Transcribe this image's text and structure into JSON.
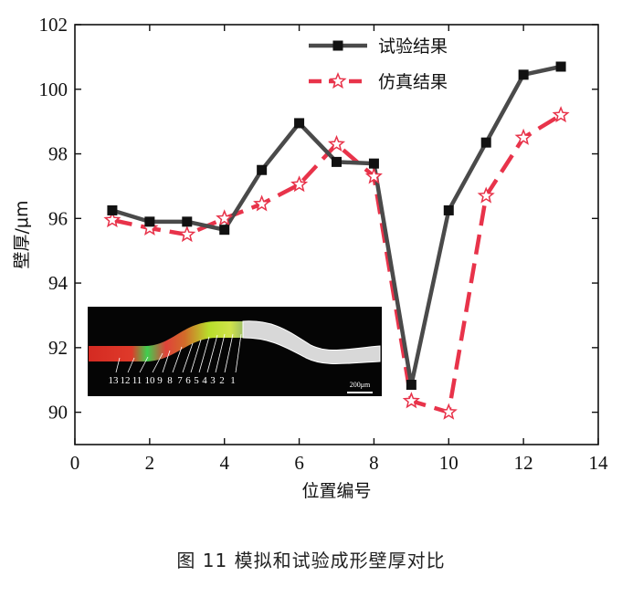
{
  "chart_data": {
    "type": "line",
    "xlabel": "位置编号",
    "ylabel": "壁厚/μm",
    "xlim": [
      0,
      14
    ],
    "ylim": [
      89,
      102
    ],
    "xticks": [
      "0",
      "2",
      "4",
      "6",
      "8",
      "10",
      "12",
      "14"
    ],
    "yticks": [
      "90",
      "92",
      "94",
      "96",
      "98",
      "100",
      "102"
    ],
    "legend_position": "top-right",
    "series": [
      {
        "name": "试验结果",
        "color": "#4a4a4a",
        "marker": "square",
        "x": [
          1,
          2,
          3,
          4,
          5,
          6,
          7,
          8,
          9,
          10,
          11,
          12,
          13
        ],
        "y": [
          96.25,
          95.9,
          95.9,
          95.65,
          97.5,
          98.95,
          97.75,
          97.7,
          90.85,
          96.25,
          98.35,
          100.45,
          100.7
        ]
      },
      {
        "name": "仿真结果",
        "color": "#e8334a",
        "marker": "star",
        "x": [
          1,
          2,
          3,
          4,
          5,
          6,
          7,
          8,
          9,
          10,
          11,
          12,
          13
        ],
        "y": [
          95.95,
          95.7,
          95.5,
          96.0,
          96.45,
          97.05,
          98.3,
          97.3,
          90.35,
          90.0,
          96.7,
          98.5,
          99.2
        ]
      }
    ],
    "inset": {
      "position_labels": [
        "13",
        "12",
        "11",
        "10",
        "9",
        "8",
        "7",
        "6",
        "5",
        "4",
        "3",
        "2",
        "1"
      ],
      "scale_bar": "200μm"
    }
  },
  "caption": "图 11    模拟和试验成形壁厚对比"
}
